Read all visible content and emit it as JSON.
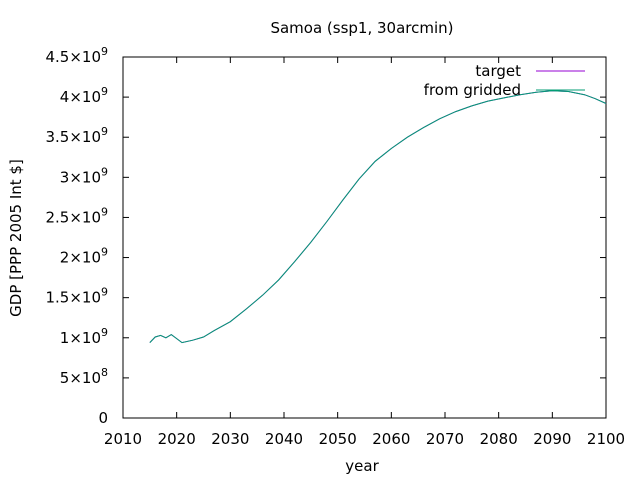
{
  "chart_data": {
    "type": "line",
    "title": "Samoa (ssp1, 30arcmin)",
    "xlabel": "year",
    "ylabel": "GDP [PPP 2005 Int $]",
    "xlim": [
      2010,
      2100
    ],
    "ylim": [
      0,
      4500000000
    ],
    "x_ticks": [
      2010,
      2020,
      2030,
      2040,
      2050,
      2060,
      2070,
      2080,
      2090,
      2100
    ],
    "y_ticks": [
      {
        "value": 0,
        "mantissa": "0",
        "exponent": ""
      },
      {
        "value": 500000000,
        "mantissa": "5×10",
        "exponent": "8"
      },
      {
        "value": 1000000000,
        "mantissa": "1×10",
        "exponent": "9"
      },
      {
        "value": 1500000000,
        "mantissa": "1.5×10",
        "exponent": "9"
      },
      {
        "value": 2000000000,
        "mantissa": "2×10",
        "exponent": "9"
      },
      {
        "value": 2500000000,
        "mantissa": "2.5×10",
        "exponent": "9"
      },
      {
        "value": 3000000000,
        "mantissa": "3×10",
        "exponent": "9"
      },
      {
        "value": 3500000000,
        "mantissa": "3.5×10",
        "exponent": "9"
      },
      {
        "value": 4000000000,
        "mantissa": "4×10",
        "exponent": "9"
      },
      {
        "value": 4500000000,
        "mantissa": "4.5×10",
        "exponent": "9"
      }
    ],
    "grid": false,
    "legend_position": "top-right",
    "x": [
      2015,
      2016,
      2017,
      2018,
      2019,
      2020,
      2021,
      2023,
      2025,
      2027,
      2030,
      2033,
      2036,
      2039,
      2042,
      2045,
      2048,
      2051,
      2054,
      2057,
      2060,
      2063,
      2066,
      2069,
      2072,
      2075,
      2078,
      2081,
      2084,
      2087,
      2090,
      2093,
      2096,
      2098,
      2100
    ],
    "series": [
      {
        "name": "target",
        "color": "#9400d3",
        "values": [
          940000000,
          1010000000,
          1030000000,
          1000000000,
          1040000000,
          990000000,
          940000000,
          970000000,
          1010000000,
          1090000000,
          1200000000,
          1360000000,
          1530000000,
          1720000000,
          1950000000,
          2190000000,
          2450000000,
          2720000000,
          2980000000,
          3200000000,
          3360000000,
          3500000000,
          3620000000,
          3730000000,
          3820000000,
          3890000000,
          3950000000,
          3990000000,
          4030000000,
          4060000000,
          4080000000,
          4070000000,
          4030000000,
          3980000000,
          3920000000
        ]
      },
      {
        "name": "from gridded",
        "color": "#009e73",
        "values": [
          940000000,
          1010000000,
          1030000000,
          1000000000,
          1040000000,
          990000000,
          940000000,
          970000000,
          1010000000,
          1090000000,
          1200000000,
          1360000000,
          1530000000,
          1720000000,
          1950000000,
          2190000000,
          2450000000,
          2720000000,
          2980000000,
          3200000000,
          3360000000,
          3500000000,
          3620000000,
          3730000000,
          3820000000,
          3890000000,
          3950000000,
          3990000000,
          4030000000,
          4060000000,
          4080000000,
          4070000000,
          4030000000,
          3980000000,
          3920000000
        ]
      }
    ]
  }
}
